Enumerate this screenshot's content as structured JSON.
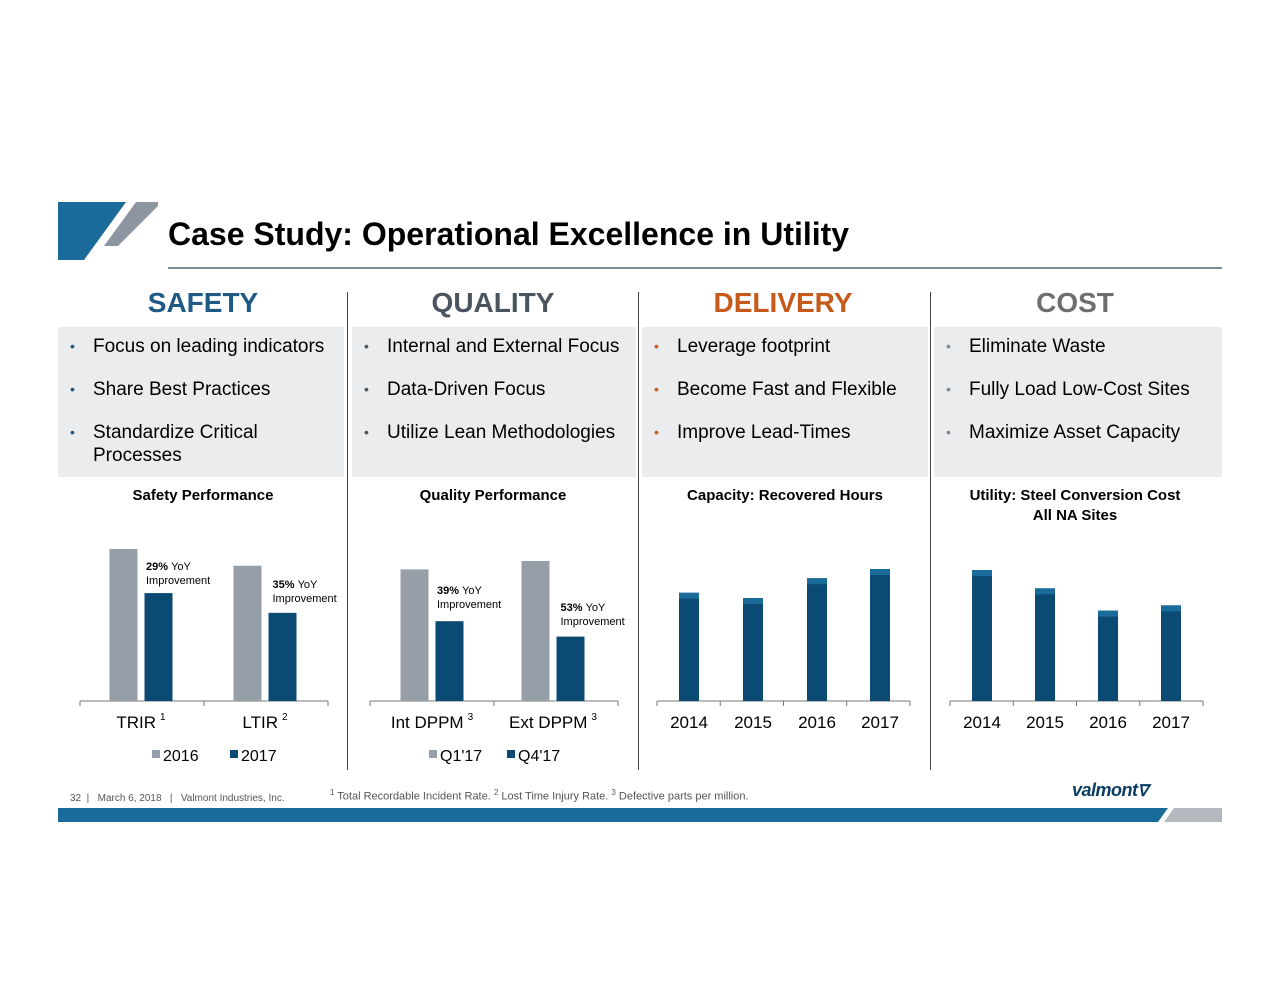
{
  "title": "Case Study: Operational Excellence in Utility",
  "columns": [
    {
      "heading": "SAFETY",
      "color": "#1f5a85",
      "bullet_color": "#1f5a85",
      "bullets": [
        "Focus on leading indicators",
        "Share Best Practices",
        "Standardize Critical Processes"
      ]
    },
    {
      "heading": "QUALITY",
      "color": "#4a5560",
      "bullet_color": "#4a5560",
      "bullets": [
        "Internal and External Focus",
        "Data-Driven Focus",
        "Utilize Lean Methodologies"
      ]
    },
    {
      "heading": "DELIVERY",
      "color": "#c55a1a",
      "bullet_color": "#c55a1a",
      "bullets": [
        "Leverage footprint",
        "Become Fast and Flexible",
        "Improve Lead-Times"
      ]
    },
    {
      "heading": "COST",
      "color": "#6e6e6e",
      "bullet_color": "#7f8a94",
      "bullets": [
        "Eliminate Waste",
        "Fully Load Low-Cost Sites",
        "Maximize Asset Capacity"
      ]
    }
  ],
  "chart_data": [
    {
      "type": "bar",
      "title": "Safety Performance",
      "categories": [
        "TRIR",
        "LTIR"
      ],
      "category_sup": [
        "1",
        "2"
      ],
      "series": [
        {
          "name": "2016",
          "values": [
            100,
            89
          ],
          "color": "#969ea8"
        },
        {
          "name": "2017",
          "values": [
            71,
            58
          ],
          "color": "#0b4a72"
        }
      ],
      "annotations": [
        {
          "pct": "29%",
          "text1": "YoY",
          "text2": "Improvement"
        },
        {
          "pct": "35%",
          "text1": "YoY",
          "text2": "Improvement"
        }
      ],
      "ylim": [
        0,
        100
      ],
      "legend": "bottom"
    },
    {
      "type": "bar",
      "title": "Quality Performance",
      "categories": [
        "Int DPPM",
        "Ext DPPM"
      ],
      "category_sup": [
        "3",
        "3"
      ],
      "series": [
        {
          "name": "Q1'17",
          "values": [
            94,
            100
          ],
          "color": "#969ea8"
        },
        {
          "name": "Q4'17",
          "values": [
            57,
            46
          ],
          "color": "#0b4a72"
        }
      ],
      "annotations": [
        {
          "pct": "39%",
          "text1": "YoY",
          "text2": "Improvement"
        },
        {
          "pct": "53%",
          "text1": "YoY",
          "text2": "Improvement"
        }
      ],
      "ylim": [
        0,
        100
      ],
      "legend": "bottom"
    },
    {
      "type": "bar",
      "title": "Capacity: Recovered Hours",
      "categories": [
        "2014",
        "2015",
        "2016",
        "2017"
      ],
      "series": [
        {
          "name": "",
          "values": [
            82,
            78,
            93,
            100
          ],
          "color": "#0b4a72"
        }
      ],
      "ylim": [
        0,
        100
      ]
    },
    {
      "type": "bar",
      "title": "Utility: Steel Conversion Cost",
      "subtitle": "All NA Sites",
      "categories": [
        "2014",
        "2015",
        "2016",
        "2017"
      ],
      "series": [
        {
          "name": "",
          "values": [
            100,
            86,
            69,
            73
          ],
          "color": "#0b4a72"
        }
      ],
      "ylim": [
        0,
        100
      ]
    }
  ],
  "footer": {
    "page": "32",
    "date": "March 6, 2018",
    "company": "Valmont Industries, Inc.",
    "note_sup1": "1",
    "note1": " Total Recordable Incident Rate. ",
    "note_sup2": "2",
    "note2": " Lost Time Injury Rate. ",
    "note_sup3": "3",
    "note3": " Defective parts per million.",
    "brand": "valmont"
  },
  "colors": {
    "accent_blue": "#0b4a72",
    "bar_gray": "#969ea8",
    "bar_blue_light": "#1a6b9a",
    "divider": "#444444"
  }
}
